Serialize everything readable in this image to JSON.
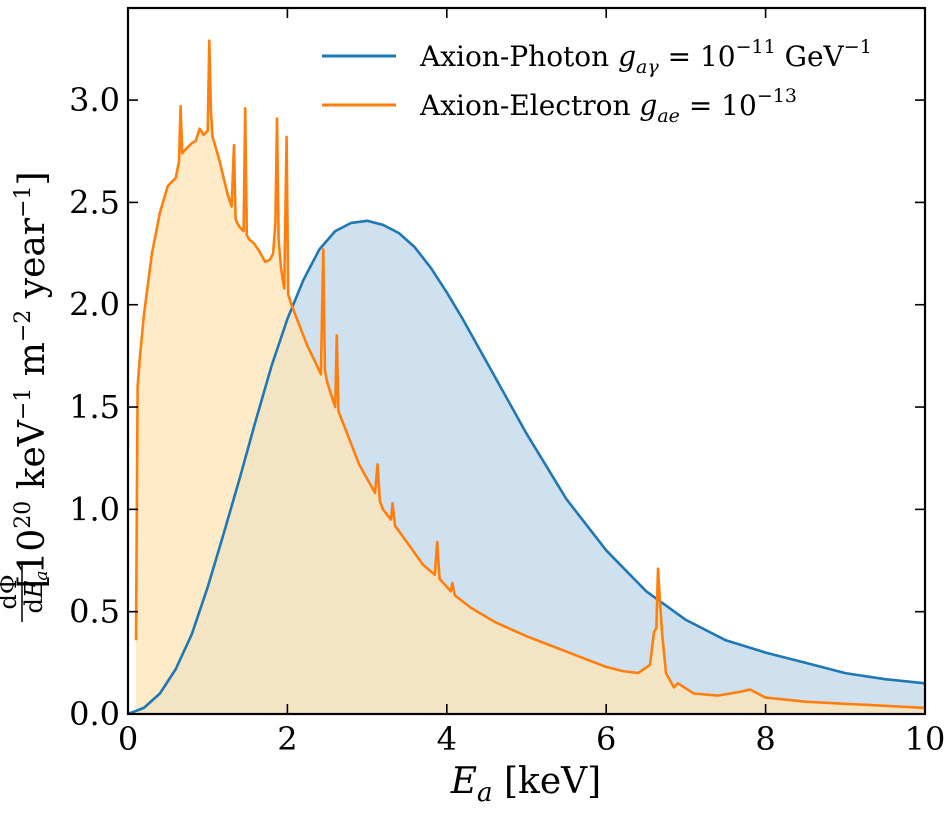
{
  "chart_data": {
    "type": "area",
    "title": "",
    "xlabel": "E_a [keV]",
    "ylabel": "dΦ/dE_a [10^20 keV^-1 m^-2 year^-1]",
    "xlim": [
      0,
      10
    ],
    "ylim": [
      0,
      3.45
    ],
    "x_ticks": [
      0,
      2,
      4,
      6,
      8,
      10
    ],
    "x_tick_labels": [
      "0",
      "2",
      "4",
      "6",
      "8",
      "10"
    ],
    "y_ticks": [
      0.0,
      0.5,
      1.0,
      1.5,
      2.0,
      2.5,
      3.0
    ],
    "y_tick_labels": [
      "0.0",
      "0.5",
      "1.0",
      "1.5",
      "2.0",
      "2.5",
      "3.0"
    ],
    "grid": false,
    "legend_position": "top-right",
    "series": [
      {
        "name": "Axion-Photon",
        "legend_label": "Axion-Photon g_aγ = 10^-11 GeV^-1",
        "line_color": "#1f77b4",
        "fill_color": "#cfe1ef",
        "fill_opacity": 1,
        "x": [
          0.0,
          0.2,
          0.4,
          0.6,
          0.8,
          1.0,
          1.2,
          1.4,
          1.6,
          1.8,
          2.0,
          2.2,
          2.4,
          2.6,
          2.8,
          3.0,
          3.2,
          3.4,
          3.6,
          3.8,
          4.0,
          4.2,
          4.4,
          4.6,
          4.8,
          5.0,
          5.5,
          6.0,
          6.5,
          7.0,
          7.5,
          8.0,
          8.5,
          9.0,
          9.5,
          10.0
        ],
        "values": [
          0.0,
          0.03,
          0.1,
          0.22,
          0.39,
          0.62,
          0.88,
          1.15,
          1.43,
          1.7,
          1.93,
          2.12,
          2.27,
          2.36,
          2.4,
          2.41,
          2.39,
          2.35,
          2.28,
          2.18,
          2.06,
          1.93,
          1.79,
          1.65,
          1.51,
          1.37,
          1.05,
          0.8,
          0.6,
          0.46,
          0.36,
          0.3,
          0.25,
          0.2,
          0.17,
          0.15
        ]
      },
      {
        "name": "Axion-Electron",
        "legend_label": "Axion-Electron g_ae = 10^-13",
        "line_color": "#ff7f0e",
        "fill_color": "#ffe4b5",
        "fill_opacity": 0.75,
        "x": [
          0.1,
          0.12,
          0.15,
          0.2,
          0.3,
          0.4,
          0.5,
          0.6,
          0.64,
          0.66,
          0.68,
          0.7,
          0.75,
          0.8,
          0.85,
          0.9,
          0.95,
          1.0,
          1.02,
          1.04,
          1.06,
          1.1,
          1.15,
          1.2,
          1.25,
          1.3,
          1.33,
          1.35,
          1.37,
          1.4,
          1.45,
          1.47,
          1.49,
          1.52,
          1.58,
          1.65,
          1.72,
          1.78,
          1.82,
          1.85,
          1.87,
          1.89,
          1.92,
          1.96,
          1.99,
          2.01,
          2.05,
          2.15,
          2.25,
          2.35,
          2.42,
          2.45,
          2.47,
          2.5,
          2.55,
          2.6,
          2.62,
          2.64,
          2.7,
          2.8,
          2.9,
          3.0,
          3.1,
          3.13,
          3.16,
          3.2,
          3.3,
          3.32,
          3.35,
          3.5,
          3.7,
          3.85,
          3.88,
          3.91,
          4.05,
          4.07,
          4.1,
          4.3,
          4.6,
          5.0,
          5.4,
          5.8,
          6.0,
          6.2,
          6.4,
          6.55,
          6.6,
          6.63,
          6.65,
          6.67,
          6.7,
          6.75,
          6.85,
          6.9,
          7.1,
          7.4,
          7.7,
          7.8,
          8.0,
          8.5,
          9.0,
          9.5,
          10.0
        ],
        "values": [
          0.36,
          1.6,
          1.75,
          1.95,
          2.25,
          2.45,
          2.58,
          2.62,
          2.7,
          2.97,
          2.74,
          2.75,
          2.77,
          2.79,
          2.8,
          2.86,
          2.83,
          2.85,
          3.29,
          2.95,
          2.82,
          2.77,
          2.7,
          2.62,
          2.54,
          2.48,
          2.78,
          2.42,
          2.4,
          2.38,
          2.36,
          2.96,
          2.34,
          2.32,
          2.3,
          2.26,
          2.21,
          2.22,
          2.25,
          2.4,
          2.91,
          2.32,
          2.18,
          2.08,
          2.82,
          2.05,
          2.0,
          1.9,
          1.8,
          1.72,
          1.66,
          2.27,
          1.68,
          1.62,
          1.56,
          1.5,
          1.85,
          1.48,
          1.42,
          1.32,
          1.22,
          1.15,
          1.08,
          1.22,
          1.04,
          1.0,
          0.95,
          1.03,
          0.92,
          0.84,
          0.73,
          0.68,
          0.84,
          0.66,
          0.6,
          0.64,
          0.58,
          0.52,
          0.45,
          0.38,
          0.32,
          0.26,
          0.23,
          0.21,
          0.2,
          0.24,
          0.4,
          0.42,
          0.71,
          0.58,
          0.4,
          0.2,
          0.13,
          0.15,
          0.1,
          0.09,
          0.11,
          0.12,
          0.08,
          0.06,
          0.05,
          0.04,
          0.03
        ]
      }
    ]
  }
}
